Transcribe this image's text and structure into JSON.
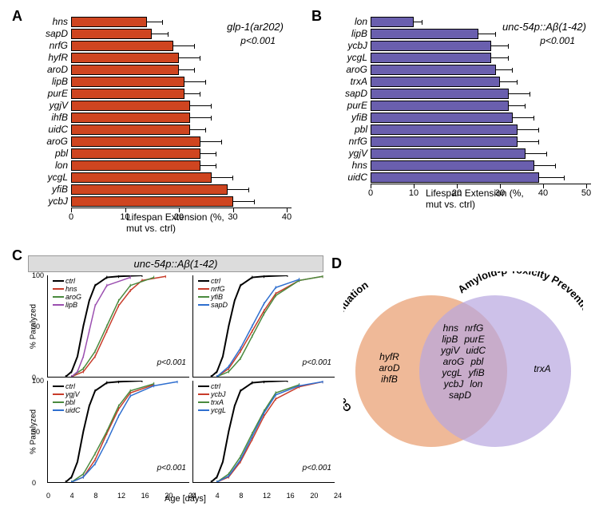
{
  "panelA": {
    "label": "A",
    "type": "bar",
    "title_italic": "glp-1(ar202)",
    "pvalue": "p<0.001",
    "bar_color": "#cf4520",
    "xlim": [
      0,
      40
    ],
    "xtick_step": 10,
    "x_title": "Lifespan Extension (%, mut vs. ctrl)",
    "categories": [
      "hns",
      "sapD",
      "nrfG",
      "hyfR",
      "aroD",
      "lipB",
      "purE",
      "ygjV",
      "ihfB",
      "uidC",
      "aroG",
      "pbl",
      "lon",
      "ycgL",
      "yfiB",
      "ycbJ"
    ],
    "values": [
      14,
      15,
      19,
      20,
      20,
      21,
      21,
      22,
      22,
      22,
      24,
      24,
      24,
      26,
      29,
      30
    ],
    "errors": [
      3,
      3,
      4,
      4,
      3,
      4,
      3,
      4,
      4,
      3,
      4,
      3,
      3,
      4,
      4,
      4
    ]
  },
  "panelB": {
    "label": "B",
    "type": "bar",
    "title_italic": "unc-54p::Aβ(1-42)",
    "pvalue": "p<0.001",
    "bar_color": "#6a5fae",
    "xlim": [
      0,
      50
    ],
    "xtick_step": 10,
    "x_title": "Lifespan Extension (%, mut vs. ctrl)",
    "categories": [
      "lon",
      "lipB",
      "ycbJ",
      "ycgL",
      "aroG",
      "trxA",
      "sapD",
      "purE",
      "yfiB",
      "pbl",
      "nrfG",
      "ygjV",
      "hns",
      "uidC"
    ],
    "values": [
      10,
      25,
      28,
      28,
      29,
      30,
      32,
      32,
      33,
      34,
      34,
      36,
      38,
      39
    ],
    "errors": [
      2,
      4,
      4,
      4,
      4,
      4,
      5,
      4,
      5,
      5,
      5,
      5,
      5,
      6
    ]
  },
  "panelC": {
    "label": "C",
    "header": "unc-54p::Aβ(1-42)",
    "x_title": "Age [days]",
    "y_title": "% Paralyzed",
    "xlim": [
      0,
      24
    ],
    "xtick_step": 4,
    "ylim": [
      0,
      100
    ],
    "ytick_step": 50,
    "pvalue": "p<0.001",
    "colors": {
      "ctrl": "#000000",
      "hns": "#c83c2a",
      "nrfG": "#c83c2a",
      "ygjV": "#c83c2a",
      "ycbJ": "#c83c2a",
      "aroG": "#4a8a3e",
      "yfiB": "#4a8a3e",
      "pbl": "#4a8a3e",
      "trxA": "#4a8a3e",
      "lipB": "#9b4fb0",
      "sapD": "#2f6fcf",
      "uidC": "#2f6fcf",
      "ycgL": "#2f6fcf"
    },
    "subplots": [
      {
        "legend": [
          "ctrl",
          "hns",
          "aroG",
          "lipB"
        ],
        "series": {
          "ctrl": [
            [
              3,
              0
            ],
            [
              4,
              5
            ],
            [
              5,
              20
            ],
            [
              6,
              50
            ],
            [
              7,
              75
            ],
            [
              8,
              90
            ],
            [
              10,
              98
            ],
            [
              12,
              99
            ],
            [
              16,
              100
            ]
          ],
          "hns": [
            [
              4,
              0
            ],
            [
              6,
              5
            ],
            [
              8,
              20
            ],
            [
              10,
              45
            ],
            [
              12,
              70
            ],
            [
              14,
              85
            ],
            [
              16,
              95
            ],
            [
              20,
              99
            ]
          ],
          "aroG": [
            [
              4,
              0
            ],
            [
              6,
              8
            ],
            [
              8,
              25
            ],
            [
              10,
              50
            ],
            [
              12,
              75
            ],
            [
              14,
              90
            ],
            [
              18,
              98
            ]
          ],
          "lipB": [
            [
              4,
              0
            ],
            [
              5,
              5
            ],
            [
              6,
              20
            ],
            [
              7,
              45
            ],
            [
              8,
              70
            ],
            [
              10,
              90
            ],
            [
              14,
              98
            ]
          ]
        }
      },
      {
        "legend": [
          "ctrl",
          "nrfG",
          "yfiB",
          "sapD"
        ],
        "series": {
          "ctrl": [
            [
              3,
              0
            ],
            [
              4,
              5
            ],
            [
              5,
              20
            ],
            [
              6,
              50
            ],
            [
              7,
              75
            ],
            [
              8,
              90
            ],
            [
              10,
              98
            ],
            [
              12,
              99
            ],
            [
              16,
              100
            ]
          ],
          "nrfG": [
            [
              4,
              0
            ],
            [
              6,
              8
            ],
            [
              8,
              25
            ],
            [
              10,
              45
            ],
            [
              12,
              65
            ],
            [
              14,
              82
            ],
            [
              18,
              95
            ],
            [
              22,
              99
            ]
          ],
          "yfiB": [
            [
              4,
              0
            ],
            [
              6,
              5
            ],
            [
              8,
              18
            ],
            [
              10,
              40
            ],
            [
              12,
              62
            ],
            [
              14,
              80
            ],
            [
              18,
              95
            ],
            [
              22,
              99
            ]
          ],
          "sapD": [
            [
              4,
              0
            ],
            [
              6,
              10
            ],
            [
              8,
              28
            ],
            [
              10,
              50
            ],
            [
              12,
              72
            ],
            [
              14,
              88
            ],
            [
              18,
              96
            ]
          ]
        }
      },
      {
        "legend": [
          "ctrl",
          "ygjV",
          "pbl",
          "uidC"
        ],
        "series": {
          "ctrl": [
            [
              3,
              0
            ],
            [
              4,
              5
            ],
            [
              5,
              20
            ],
            [
              6,
              50
            ],
            [
              7,
              75
            ],
            [
              8,
              90
            ],
            [
              10,
              98
            ],
            [
              12,
              99
            ],
            [
              16,
              100
            ]
          ],
          "ygjV": [
            [
              4,
              0
            ],
            [
              6,
              5
            ],
            [
              8,
              22
            ],
            [
              10,
              48
            ],
            [
              12,
              72
            ],
            [
              14,
              88
            ],
            [
              18,
              96
            ]
          ],
          "pbl": [
            [
              4,
              0
            ],
            [
              6,
              8
            ],
            [
              8,
              28
            ],
            [
              10,
              50
            ],
            [
              12,
              75
            ],
            [
              14,
              90
            ],
            [
              18,
              97
            ]
          ],
          "uidC": [
            [
              4,
              0
            ],
            [
              6,
              5
            ],
            [
              8,
              18
            ],
            [
              10,
              40
            ],
            [
              12,
              65
            ],
            [
              14,
              85
            ],
            [
              18,
              95
            ],
            [
              22,
              99
            ]
          ]
        }
      },
      {
        "legend": [
          "ctrl",
          "ycbJ",
          "trxA",
          "ycgL"
        ],
        "series": {
          "ctrl": [
            [
              3,
              0
            ],
            [
              4,
              5
            ],
            [
              5,
              20
            ],
            [
              6,
              50
            ],
            [
              7,
              75
            ],
            [
              8,
              90
            ],
            [
              10,
              98
            ],
            [
              12,
              99
            ],
            [
              16,
              100
            ]
          ],
          "ycbJ": [
            [
              4,
              0
            ],
            [
              6,
              5
            ],
            [
              8,
              20
            ],
            [
              10,
              42
            ],
            [
              12,
              65
            ],
            [
              14,
              82
            ],
            [
              18,
              94
            ],
            [
              22,
              99
            ]
          ],
          "trxA": [
            [
              4,
              0
            ],
            [
              6,
              8
            ],
            [
              8,
              25
            ],
            [
              10,
              48
            ],
            [
              12,
              70
            ],
            [
              14,
              88
            ],
            [
              18,
              96
            ]
          ],
          "ycgL": [
            [
              4,
              0
            ],
            [
              6,
              6
            ],
            [
              8,
              22
            ],
            [
              10,
              45
            ],
            [
              12,
              68
            ],
            [
              14,
              86
            ],
            [
              18,
              95
            ],
            [
              22,
              99
            ]
          ]
        }
      }
    ]
  },
  "panelD": {
    "label": "D",
    "left_circle": {
      "color": "#e89b6c",
      "label": "Germline Tumor Attenuation"
    },
    "right_circle": {
      "color": "#b8a6e0",
      "label": "Amyloid-β Toxicity Prevention"
    },
    "left_only": [
      "hyfR",
      "aroD",
      "ihfB"
    ],
    "overlap": [
      "hns",
      "nrfG",
      "lipB",
      "purE",
      "ygiV",
      "uidC",
      "aroG",
      "pbl",
      "ycgL",
      "yfiB",
      "ycbJ",
      "lon",
      "sapD"
    ],
    "right_only": [
      "trxA"
    ]
  }
}
